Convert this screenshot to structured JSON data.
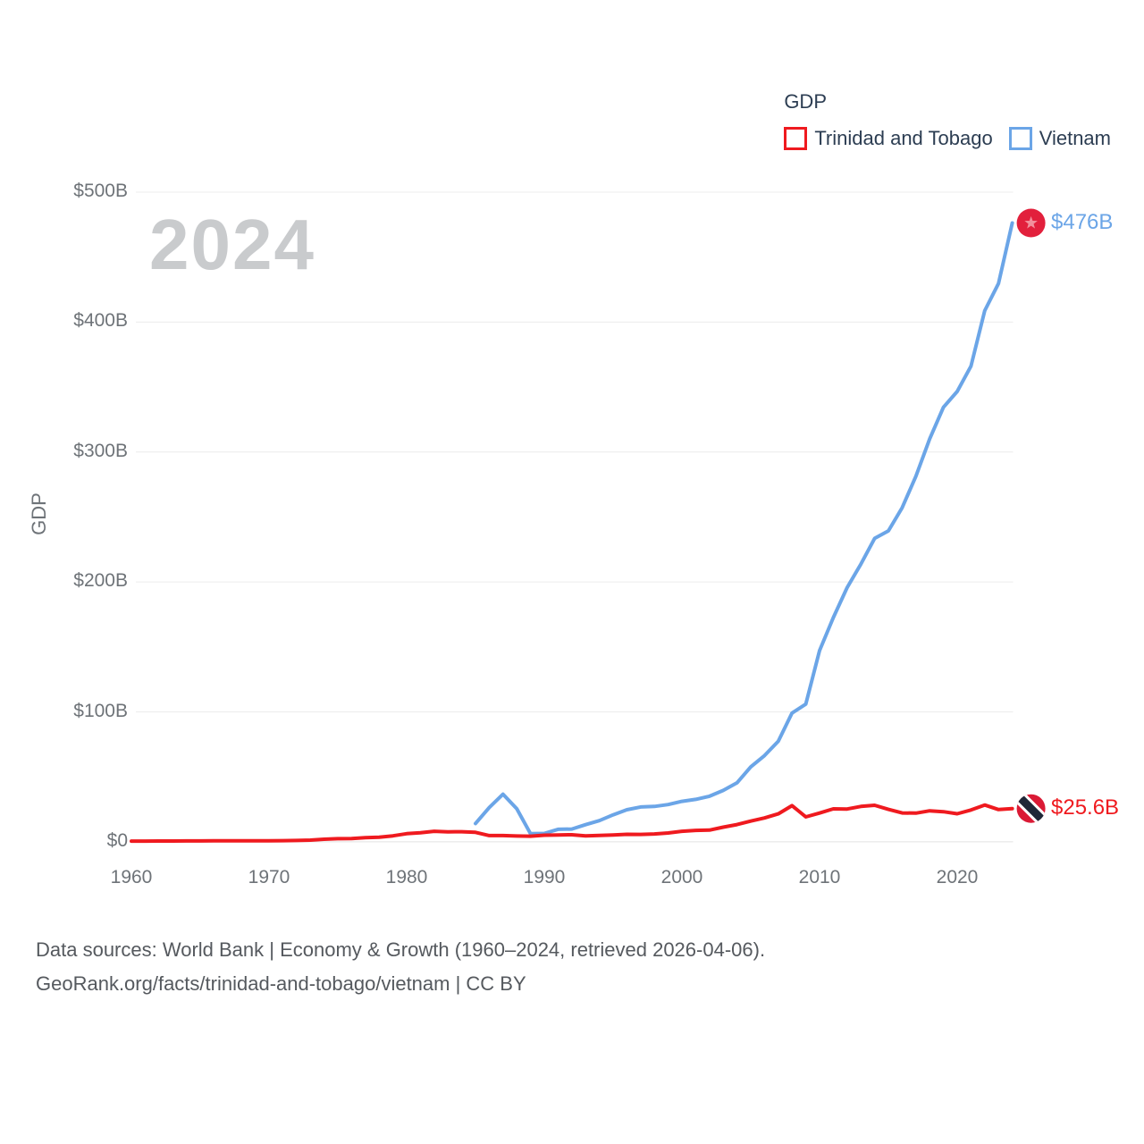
{
  "watermark": "2024",
  "legend": {
    "title": "GDP",
    "items": [
      {
        "label": "Trinidad and Tobago",
        "color": "#ef1a1f"
      },
      {
        "label": "Vietnam",
        "color": "#6ba5e7"
      }
    ]
  },
  "y_axis": {
    "label": "GDP",
    "ticks": [
      "$0",
      "$100B",
      "$200B",
      "$300B",
      "$400B",
      "$500B"
    ]
  },
  "x_axis": {
    "ticks": [
      "1960",
      "1970",
      "1980",
      "1990",
      "2000",
      "2010",
      "2020"
    ]
  },
  "end_labels": {
    "vietnam": "$476B",
    "trinidad": "$25.6B"
  },
  "footer": {
    "line1": "Data sources: World Bank | Economy & Growth (1960–2024, retrieved 2026-04-06).",
    "line2": "GeoRank.org/facts/trinidad-and-tobago/vietnam | CC BY"
  },
  "colors": {
    "trinidad_line": "#ef1a1f",
    "vietnam_line": "#6ba5e7",
    "grid": "#ececec",
    "baseline": "#e2e2e2",
    "tick_text": "#6e7378",
    "legend_text": "#2c3d52",
    "watermark": "#c9cbcd",
    "footer_text": "#55595e",
    "vietnam_flag_red": "#e2203c",
    "vietnam_flag_star": "#f2909c",
    "trinidad_flag_red": "#da1a35",
    "trinidad_flag_band": "#1f2838",
    "trinidad_flag_band_edge": "#ffffff"
  },
  "chart_data": {
    "type": "line",
    "title": "GDP",
    "xlabel": "",
    "ylabel": "GDP",
    "unit": "billion USD",
    "x_range": [
      1960,
      2024
    ],
    "ylim": [
      0,
      500
    ],
    "grid": true,
    "legend_position": "top-right",
    "x_ticks": [
      1960,
      1970,
      1980,
      1990,
      2000,
      2010,
      2020
    ],
    "y_ticks_billions": [
      0,
      100,
      200,
      300,
      400,
      500
    ],
    "series": [
      {
        "name": "Trinidad and Tobago",
        "color": "#ef1a1f",
        "x_start": 1960,
        "end_label": "$25.6B",
        "values": [
          0.54,
          0.58,
          0.62,
          0.65,
          0.68,
          0.72,
          0.74,
          0.78,
          0.81,
          0.83,
          0.82,
          0.9,
          1.03,
          1.31,
          1.98,
          2.44,
          2.5,
          3.14,
          3.56,
          4.6,
          6.24,
          6.93,
          8.14,
          7.69,
          7.77,
          7.27,
          4.79,
          4.81,
          4.48,
          4.32,
          5.07,
          5.31,
          5.44,
          4.58,
          4.95,
          5.33,
          5.76,
          5.74,
          6.05,
          6.8,
          8.15,
          8.83,
          9.01,
          11.31,
          13.28,
          15.98,
          18.37,
          21.54,
          27.87,
          19.17,
          22.16,
          25.38,
          25.25,
          27.26,
          28.14,
          24.94,
          22.22,
          22.08,
          23.87,
          23.21,
          21.59,
          24.46,
          28.32,
          24.8,
          25.62
        ]
      },
      {
        "name": "Vietnam",
        "color": "#6ba5e7",
        "x_start": 1985,
        "end_label": "$476B",
        "values": [
          14.09,
          26.34,
          36.66,
          25.42,
          6.29,
          6.47,
          9.61,
          9.87,
          13.18,
          16.29,
          20.74,
          24.66,
          26.84,
          27.21,
          28.68,
          31.17,
          32.69,
          35.06,
          39.55,
          45.43,
          57.63,
          66.37,
          77.41,
          99.13,
          106.02,
          147.2,
          172.6,
          195.6,
          213.7,
          233.5,
          239.3,
          257.1,
          281.4,
          310.1,
          334.4,
          346.6,
          366.1,
          408.8,
          429.7,
          476.3
        ]
      }
    ]
  }
}
